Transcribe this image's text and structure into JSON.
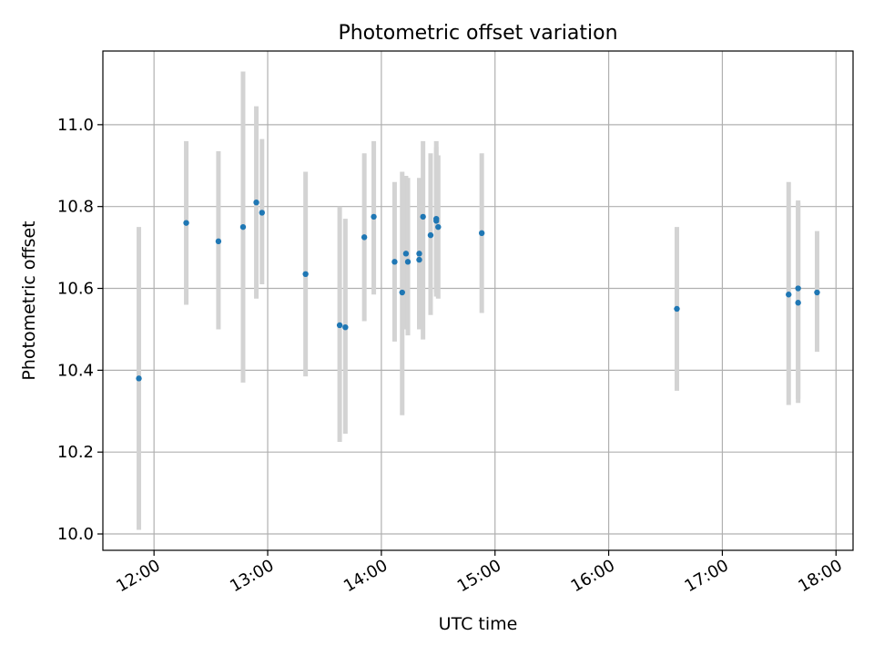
{
  "chart_data": {
    "type": "scatter",
    "title": "Photometric offset variation",
    "xlabel": "UTC time",
    "ylabel": "Photometric offset",
    "xlim": [
      "11:33",
      "18:09"
    ],
    "ylim": [
      9.96,
      11.18
    ],
    "x_ticks": [
      "12:00",
      "13:00",
      "14:00",
      "15:00",
      "16:00",
      "17:00",
      "18:00"
    ],
    "y_ticks": [
      "10.0",
      "10.2",
      "10.4",
      "10.6",
      "10.8",
      "11.0"
    ],
    "grid": true,
    "point_color": "#1f77b4",
    "errorbar_color": "#d3d3d3",
    "points": [
      {
        "time": "11:52",
        "y": 10.38,
        "err_low": 10.01,
        "err_high": 10.75
      },
      {
        "time": "12:17",
        "y": 10.76,
        "err_low": 10.56,
        "err_high": 10.96
      },
      {
        "time": "12:34",
        "y": 10.715,
        "err_low": 10.5,
        "err_high": 10.935
      },
      {
        "time": "12:47",
        "y": 10.75,
        "err_low": 10.37,
        "err_high": 11.13
      },
      {
        "time": "12:54",
        "y": 10.81,
        "err_low": 10.575,
        "err_high": 11.045
      },
      {
        "time": "12:57",
        "y": 10.785,
        "err_low": 10.61,
        "err_high": 10.965
      },
      {
        "time": "13:20",
        "y": 10.635,
        "err_low": 10.385,
        "err_high": 10.885
      },
      {
        "time": "13:38",
        "y": 10.51,
        "err_low": 10.225,
        "err_high": 10.8
      },
      {
        "time": "13:41",
        "y": 10.505,
        "err_low": 10.245,
        "err_high": 10.77
      },
      {
        "time": "13:51",
        "y": 10.725,
        "err_low": 10.52,
        "err_high": 10.93
      },
      {
        "time": "13:56",
        "y": 10.775,
        "err_low": 10.585,
        "err_high": 10.96
      },
      {
        "time": "14:07",
        "y": 10.665,
        "err_low": 10.47,
        "err_high": 10.86
      },
      {
        "time": "14:11",
        "y": 10.59,
        "err_low": 10.29,
        "err_high": 10.885
      },
      {
        "time": "14:13",
        "y": 10.685,
        "err_low": 10.5,
        "err_high": 10.875
      },
      {
        "time": "14:14",
        "y": 10.665,
        "err_low": 10.485,
        "err_high": 10.87
      },
      {
        "time": "14:20",
        "y": 10.685,
        "err_low": 10.505,
        "err_high": 10.87
      },
      {
        "time": "14:20",
        "y": 10.67,
        "err_low": 10.5,
        "err_high": 10.84
      },
      {
        "time": "14:22",
        "y": 10.775,
        "err_low": 10.475,
        "err_high": 10.96
      },
      {
        "time": "14:26",
        "y": 10.73,
        "err_low": 10.535,
        "err_high": 10.93
      },
      {
        "time": "14:29",
        "y": 10.77,
        "err_low": 10.58,
        "err_high": 10.96
      },
      {
        "time": "14:29",
        "y": 10.765,
        "err_low": 10.59,
        "err_high": 10.945
      },
      {
        "time": "14:30",
        "y": 10.75,
        "err_low": 10.575,
        "err_high": 10.925
      },
      {
        "time": "14:53",
        "y": 10.735,
        "err_low": 10.54,
        "err_high": 10.93
      },
      {
        "time": "16:36",
        "y": 10.55,
        "err_low": 10.35,
        "err_high": 10.75
      },
      {
        "time": "17:35",
        "y": 10.585,
        "err_low": 10.315,
        "err_high": 10.86
      },
      {
        "time": "17:40",
        "y": 10.6,
        "err_low": 10.33,
        "err_high": 10.815
      },
      {
        "time": "17:40",
        "y": 10.565,
        "err_low": 10.32,
        "err_high": 10.81
      },
      {
        "time": "17:50",
        "y": 10.59,
        "err_low": 10.445,
        "err_high": 10.74
      }
    ]
  }
}
